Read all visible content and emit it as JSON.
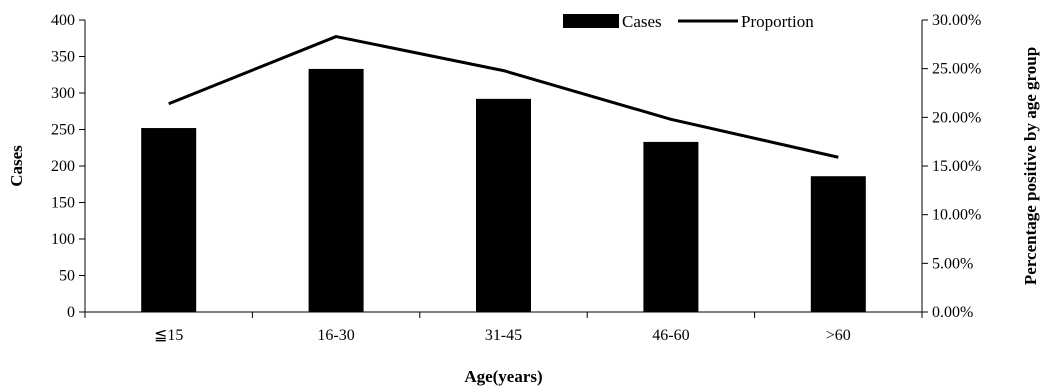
{
  "chart_data": {
    "type": "bar",
    "categories": [
      "≦15",
      "16-30",
      "31-45",
      "46-60",
      ">60"
    ],
    "series": [
      {
        "name": "Cases",
        "type": "bar",
        "axis": "left",
        "values": [
          252,
          333,
          292,
          233,
          186
        ]
      },
      {
        "name": "Proportion",
        "type": "line",
        "axis": "right",
        "values": [
          0.214,
          0.283,
          0.248,
          0.198,
          0.159
        ]
      }
    ],
    "xlabel": "Age(years)",
    "ylabel": "Cases",
    "y2label": "Percentage positive by age group",
    "ylim": [
      0,
      400
    ],
    "yticks": [
      "0",
      "50",
      "100",
      "150",
      "200",
      "250",
      "300",
      "350",
      "400"
    ],
    "y2lim": [
      0,
      0.3
    ],
    "y2ticks": [
      "0.00%",
      "5.00%",
      "10.00%",
      "15.00%",
      "20.00%",
      "25.00%",
      "30.00%"
    ],
    "grid": false,
    "legend": "top-right",
    "colors": {
      "bar": "#000000",
      "line": "#000000"
    }
  }
}
